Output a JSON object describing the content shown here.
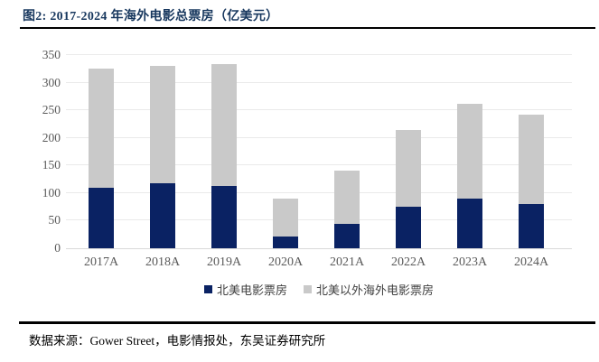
{
  "header": {
    "title": "图2:  2017-2024 年海外电影总票房（亿美元）"
  },
  "chart_data": {
    "type": "bar",
    "stacked": true,
    "title": "2017-2024 年海外电影总票房（亿美元）",
    "unit": "亿美元",
    "categories": [
      "2017A",
      "2018A",
      "2019A",
      "2020A",
      "2021A",
      "2022A",
      "2023A",
      "2024A"
    ],
    "series": [
      {
        "name": "北美电影票房",
        "color": "#0a2263",
        "values": [
          110,
          118,
          113,
          22,
          45,
          75,
          90,
          80
        ]
      },
      {
        "name": "北美以外海外电影票房",
        "color": "#c9c9c9",
        "values": [
          216,
          212,
          220,
          68,
          95,
          140,
          172,
          162
        ]
      }
    ],
    "totals": [
      326,
      330,
      333,
      90,
      140,
      215,
      262,
      242
    ],
    "ylim": [
      0,
      350
    ],
    "ytick_step": 50,
    "grid": true,
    "legend_position": "bottom"
  },
  "footer": {
    "source": "数据来源：Gower Street，电影情报处，东吴证券研究所"
  },
  "colors": {
    "bar_navy": "#0a2263",
    "bar_gray": "#c9c9c9",
    "title_navy": "#17375e",
    "gridline": "#eaeaea",
    "baseline": "#d9d9d9",
    "axis_text": "#595959",
    "rule_black": "#000000"
  }
}
